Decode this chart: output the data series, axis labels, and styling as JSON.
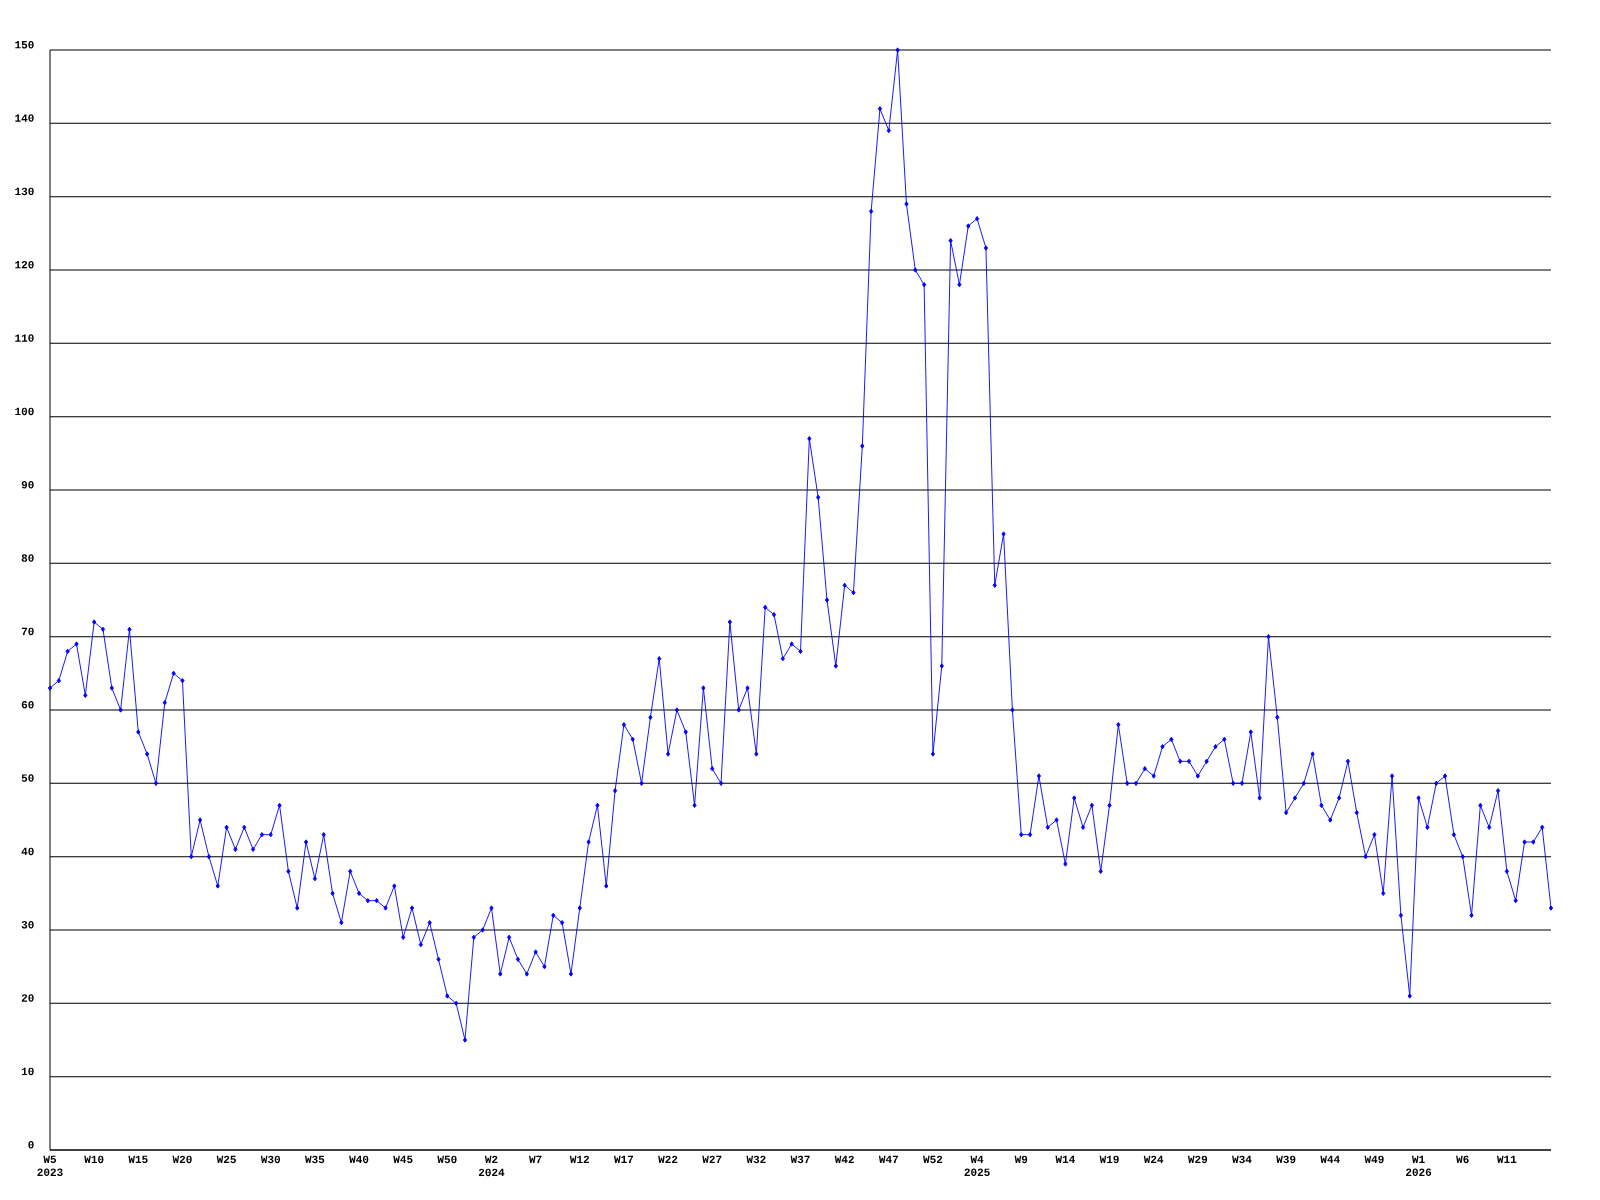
{
  "chart_data": {
    "type": "line",
    "categories": [
      "W5 2023",
      null,
      null,
      null,
      null,
      "W10",
      null,
      null,
      null,
      null,
      "W15",
      null,
      null,
      null,
      null,
      "W20",
      null,
      null,
      null,
      null,
      "W25",
      null,
      null,
      null,
      null,
      "W30",
      null,
      null,
      null,
      null,
      "W35",
      null,
      null,
      null,
      null,
      "W40",
      null,
      null,
      null,
      null,
      "W45",
      null,
      null,
      null,
      null,
      "W50",
      null,
      null,
      null,
      null,
      "W2 2024",
      null,
      null,
      null,
      null,
      "W7",
      null,
      null,
      null,
      null,
      "W12",
      null,
      null,
      null,
      null,
      "W17",
      null,
      null,
      null,
      null,
      "W22",
      null,
      null,
      null,
      null,
      "W27",
      null,
      null,
      null,
      null,
      "W32",
      null,
      null,
      null,
      null,
      "W37",
      null,
      null,
      null,
      null,
      "W42",
      null,
      null,
      null,
      null,
      "W47",
      null,
      null,
      null,
      null,
      "W52",
      null,
      null,
      null,
      null,
      "W4 2025",
      null,
      null,
      null,
      null,
      "W9",
      null,
      null,
      null,
      null,
      "W14",
      null,
      null,
      null,
      null,
      "W19",
      null,
      null,
      null,
      null,
      "W24",
      null,
      null,
      null,
      null,
      "W29",
      null,
      null,
      null,
      null,
      "W34",
      null,
      null,
      null,
      null,
      "W39",
      null,
      null,
      null,
      null,
      "W44",
      null,
      null,
      null,
      null,
      "W49",
      null,
      null,
      null,
      null,
      "W1 2026",
      null,
      null,
      null,
      null,
      "W6",
      null,
      null,
      null,
      null,
      "W11",
      null,
      null,
      null,
      null,
      null
    ],
    "values": [
      63,
      64,
      68,
      69,
      62,
      72,
      71,
      63,
      60,
      71,
      57,
      54,
      50,
      61,
      65,
      64,
      40,
      45,
      40,
      36,
      44,
      41,
      44,
      41,
      43,
      43,
      47,
      38,
      33,
      42,
      37,
      43,
      35,
      31,
      38,
      35,
      34,
      34,
      33,
      36,
      29,
      33,
      28,
      31,
      26,
      21,
      20,
      15,
      29,
      30,
      33,
      24,
      29,
      26,
      24,
      27,
      25,
      32,
      31,
      24,
      33,
      42,
      47,
      36,
      49,
      58,
      56,
      50,
      59,
      67,
      54,
      60,
      57,
      47,
      63,
      52,
      50,
      72,
      60,
      63,
      54,
      74,
      73,
      67,
      69,
      68,
      97,
      89,
      75,
      66,
      77,
      76,
      96,
      128,
      142,
      139,
      150,
      129,
      120,
      118,
      54,
      66,
      124,
      118,
      126,
      127,
      123,
      77,
      84,
      60,
      43,
      43,
      51,
      44,
      45,
      39,
      48,
      44,
      47,
      38,
      47,
      58,
      50,
      50,
      52,
      51,
      55,
      56,
      53,
      53,
      51,
      53,
      55,
      56,
      50,
      50,
      57,
      48,
      70,
      59,
      46,
      48,
      50,
      54,
      47,
      45,
      48,
      53,
      46,
      40,
      43,
      35,
      51,
      32,
      21,
      48,
      44,
      50,
      51,
      43,
      40,
      32,
      47,
      44,
      49,
      38,
      34,
      42,
      42,
      44,
      33
    ],
    "color": "#0000ff",
    "marker": "diamond",
    "ylim": [
      0,
      150
    ],
    "yticks": [
      0,
      10,
      20,
      30,
      40,
      50,
      60,
      70,
      80,
      90,
      100,
      110,
      120,
      130,
      140,
      150
    ],
    "grid": "y"
  }
}
